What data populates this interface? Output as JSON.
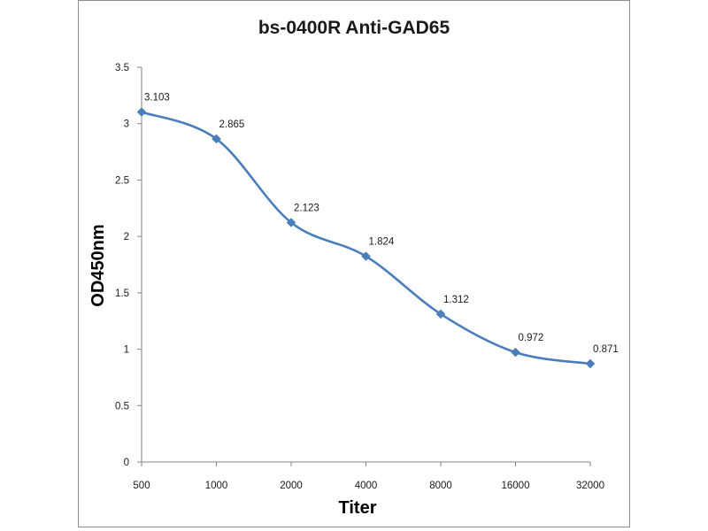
{
  "chart_data": {
    "type": "line",
    "title": "bs-0400R  Anti-GAD65",
    "xlabel": "Titer",
    "ylabel": "OD450nm",
    "categories": [
      "500",
      "1000",
      "2000",
      "4000",
      "8000",
      "16000",
      "32000"
    ],
    "series": [
      {
        "name": "OD450nm",
        "values": [
          3.103,
          2.865,
          2.123,
          1.824,
          1.312,
          0.972,
          0.871
        ],
        "labels": [
          "3.103",
          "2.865",
          "2.123",
          "1.824",
          "1.312",
          "0.972",
          "0.871"
        ]
      }
    ],
    "ylim": [
      0,
      3.5
    ],
    "yticks": [
      "0",
      "0.5",
      "1",
      "1.5",
      "2",
      "2.5",
      "3",
      "3.5"
    ],
    "grid": false,
    "legend": "none",
    "line_color": "#4a7ebb",
    "marker": "diamond",
    "smooth": true
  }
}
